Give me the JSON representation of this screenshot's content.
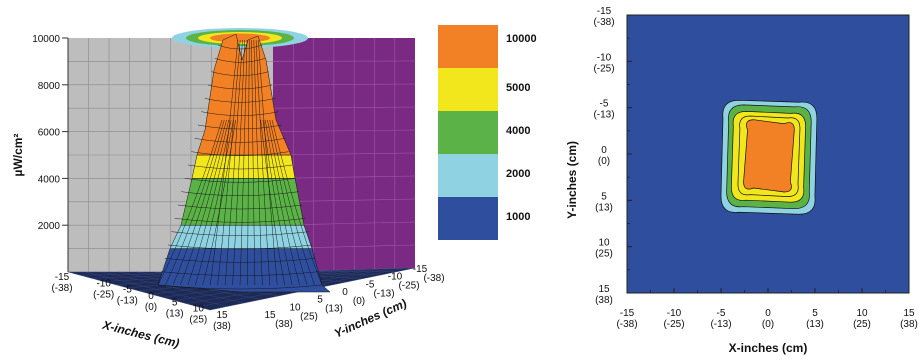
{
  "colors": {
    "band_1000": "#2f4e9e",
    "band_2000": "#8fd3e3",
    "band_4000": "#5bb347",
    "band_5000": "#f2e61d",
    "band_10000": "#f28024",
    "left_wall": "#bdbdbd",
    "right_wall": "#7a2a82",
    "floor": "#1d2a55"
  },
  "chart_data": [
    {
      "type": "surface3d",
      "title": "",
      "zlabel": "µW/cm²",
      "z_ticks": [
        "2000",
        "4000",
        "6000",
        "8000",
        "10000"
      ],
      "zlim": [
        0,
        10000
      ],
      "xlabel": "X-inches (cm)",
      "ylabel": "Y-inches (cm)",
      "x_ticks": [
        {
          "in": "-15",
          "cm": "(-38)"
        },
        {
          "in": "-10",
          "cm": "(-25)"
        },
        {
          "in": "-5",
          "cm": "(-13)"
        },
        {
          "in": "0",
          "cm": "(0)"
        },
        {
          "in": "5",
          "cm": "(13)"
        },
        {
          "in": "10",
          "cm": "(25)"
        },
        {
          "in": "15",
          "cm": "(38)"
        }
      ],
      "y_ticks": [
        {
          "in": "15",
          "cm": "(38)"
        },
        {
          "in": "10",
          "cm": "(25)"
        },
        {
          "in": "5",
          "cm": "(13)"
        },
        {
          "in": "0",
          "cm": "(0)"
        },
        {
          "in": "-5",
          "cm": "(-13)"
        },
        {
          "in": "-10",
          "cm": "(-25)"
        },
        {
          "in": "-15",
          "cm": "(-38)"
        }
      ],
      "peak_value": 10000
    },
    {
      "type": "contour",
      "xlabel": "X-inches (cm)",
      "ylabel": "Y-inches (cm)",
      "xlim": [
        -15,
        15
      ],
      "ylim": [
        -15,
        15
      ],
      "x_ticks": [
        {
          "in": "-15",
          "cm": "(-38)"
        },
        {
          "in": "-10",
          "cm": "(-25)"
        },
        {
          "in": "-5",
          "cm": "(-13)"
        },
        {
          "in": "0",
          "cm": "(0)"
        },
        {
          "in": "5",
          "cm": "(13)"
        },
        {
          "in": "10",
          "cm": "(25)"
        },
        {
          "in": "15",
          "cm": "(38)"
        }
      ],
      "y_ticks": [
        {
          "in": "-15",
          "cm": "(-38)"
        },
        {
          "in": "-10",
          "cm": "(-25)"
        },
        {
          "in": "-5",
          "cm": "(-13)"
        },
        {
          "in": "0",
          "cm": "(0)"
        },
        {
          "in": "5",
          "cm": "(13)"
        },
        {
          "in": "10",
          "cm": "(25)"
        },
        {
          "in": "15",
          "cm": "(38)"
        }
      ],
      "levels": [
        {
          "value": 1000,
          "x_range": [
            -5.0,
            5.2
          ],
          "y_range": [
            -5.8,
            6.5
          ]
        },
        {
          "value": 2000,
          "x_range": [
            -4.4,
            4.6
          ],
          "y_range": [
            -5.3,
            5.9
          ]
        },
        {
          "value": 4000,
          "x_range": [
            -3.9,
            4.0
          ],
          "y_range": [
            -4.6,
            5.2
          ]
        },
        {
          "value": 5000,
          "x_range": [
            -3.2,
            3.4
          ],
          "y_range": [
            -4.1,
            4.6
          ]
        },
        {
          "value": 10000,
          "x_range": [
            -2.6,
            2.8
          ],
          "y_range": [
            -3.7,
            4.1
          ]
        }
      ]
    }
  ],
  "legend": [
    {
      "label": "10000",
      "color": "#f28024"
    },
    {
      "label": "5000",
      "color": "#f2e61d"
    },
    {
      "label": "4000",
      "color": "#5bb347"
    },
    {
      "label": "2000",
      "color": "#8fd3e3"
    },
    {
      "label": "1000",
      "color": "#2f4e9e"
    }
  ]
}
